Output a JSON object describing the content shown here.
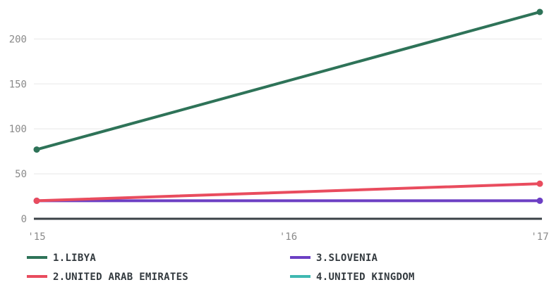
{
  "chart_data": {
    "type": "line",
    "title": "",
    "xlabel": "",
    "ylabel": "",
    "x": [
      "'15",
      "'16",
      "'17"
    ],
    "x_numeric": [
      2015,
      2016,
      2017
    ],
    "ylim": [
      0,
      230
    ],
    "yticks": [
      0,
      50,
      100,
      150,
      200
    ],
    "grid": true,
    "legend_position": "bottom",
    "series": [
      {
        "name": "1.LIBYA",
        "color": "#2e7358",
        "values": [
          77,
          null,
          230
        ]
      },
      {
        "name": "2.UNITED ARAB EMIRATES",
        "color": "#e94c5e",
        "values": [
          20,
          null,
          39
        ]
      },
      {
        "name": "3.SLOVENIA",
        "color": "#6c3fc4",
        "values": [
          20,
          null,
          20
        ]
      },
      {
        "name": "4.UNITED KINGDOM",
        "color": "#3fb8b1",
        "values": [
          0,
          null,
          0
        ]
      }
    ]
  }
}
